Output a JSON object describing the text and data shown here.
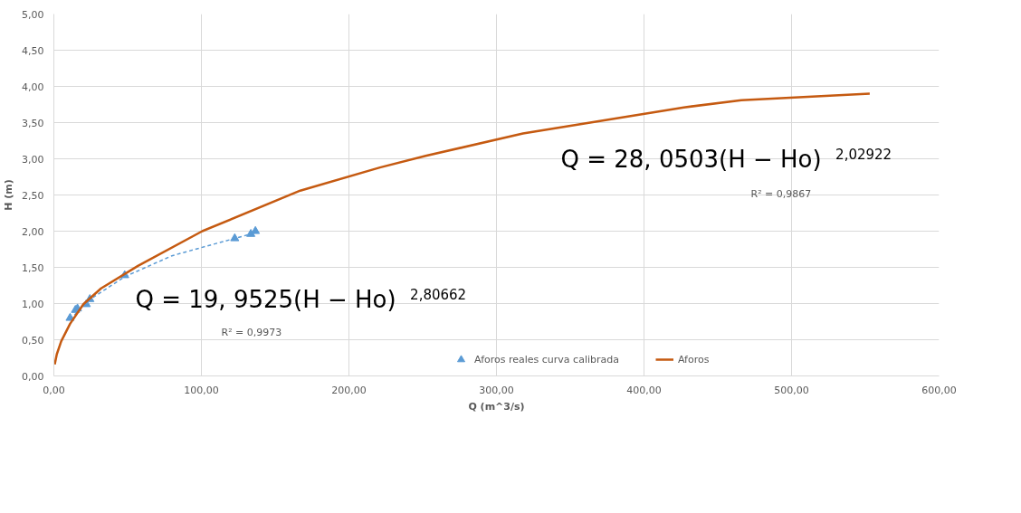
{
  "chart_data": {
    "type": "scatter",
    "xlabel": "Q (m^3/s)",
    "ylabel": "H (m)",
    "xlim": [
      0,
      600
    ],
    "ylim": [
      0,
      5
    ],
    "xticks": [
      {
        "value": 0,
        "label": "0,00"
      },
      {
        "value": 100,
        "label": "100,00"
      },
      {
        "value": 200,
        "label": "200,00"
      },
      {
        "value": 300,
        "label": "300,00"
      },
      {
        "value": 400,
        "label": "400,00"
      },
      {
        "value": 500,
        "label": "500,00"
      },
      {
        "value": 600,
        "label": "600,00"
      }
    ],
    "yticks": [
      {
        "value": 0,
        "label": "0,00"
      },
      {
        "value": 0.5,
        "label": "0,50"
      },
      {
        "value": 1,
        "label": "1,00"
      },
      {
        "value": 1.5,
        "label": "1,50"
      },
      {
        "value": 2,
        "label": "2,00"
      },
      {
        "value": 2.5,
        "label": "2,50"
      },
      {
        "value": 3,
        "label": "3,00"
      },
      {
        "value": 3.5,
        "label": "3,50"
      },
      {
        "value": 4,
        "label": "4,00"
      },
      {
        "value": 4.5,
        "label": "4,50"
      },
      {
        "value": 5,
        "label": "5,00"
      }
    ],
    "grid": true,
    "legend": "bottom",
    "series": [
      {
        "name": "Aforos reales curva calibrada",
        "type": "scatter",
        "marker": "triangle",
        "color": "#5b9bd5",
        "x": [
          11,
          14.6,
          16,
          22,
          24.4,
          48,
          122.6,
          133.5,
          136.6
        ],
        "values": [
          0.8,
          0.91,
          0.93,
          0.99,
          1.06,
          1.39,
          1.9,
          1.96,
          2.0
        ]
      },
      {
        "type": "line",
        "line_style": "dashed",
        "color": "#5b9bd5",
        "x": [
          11,
          24,
          48,
          80,
          110,
          137
        ],
        "values": [
          0.78,
          1.05,
          1.37,
          1.66,
          1.83,
          1.98
        ]
      },
      {
        "name": "Aforos",
        "type": "line",
        "line_style": "solid",
        "color": "#c55a11",
        "x": [
          0.6,
          2,
          5,
          11,
          20,
          32,
          57,
          100.6,
          167,
          221,
          252,
          318,
          427,
          466,
          553
        ],
        "values": [
          0.16,
          0.3,
          0.48,
          0.72,
          0.99,
          1.21,
          1.52,
          2.0,
          2.56,
          2.88,
          3.04,
          3.35,
          3.71,
          3.81,
          3.9
        ]
      }
    ],
    "annotations": [
      "Q = 28, 0503(H − Ho)$^{2,02922}$",
      "R² = 0,9867",
      "Q = 19, 9525(H − Ho)$^{2,80662}$",
      "R² = 0,9973"
    ]
  }
}
